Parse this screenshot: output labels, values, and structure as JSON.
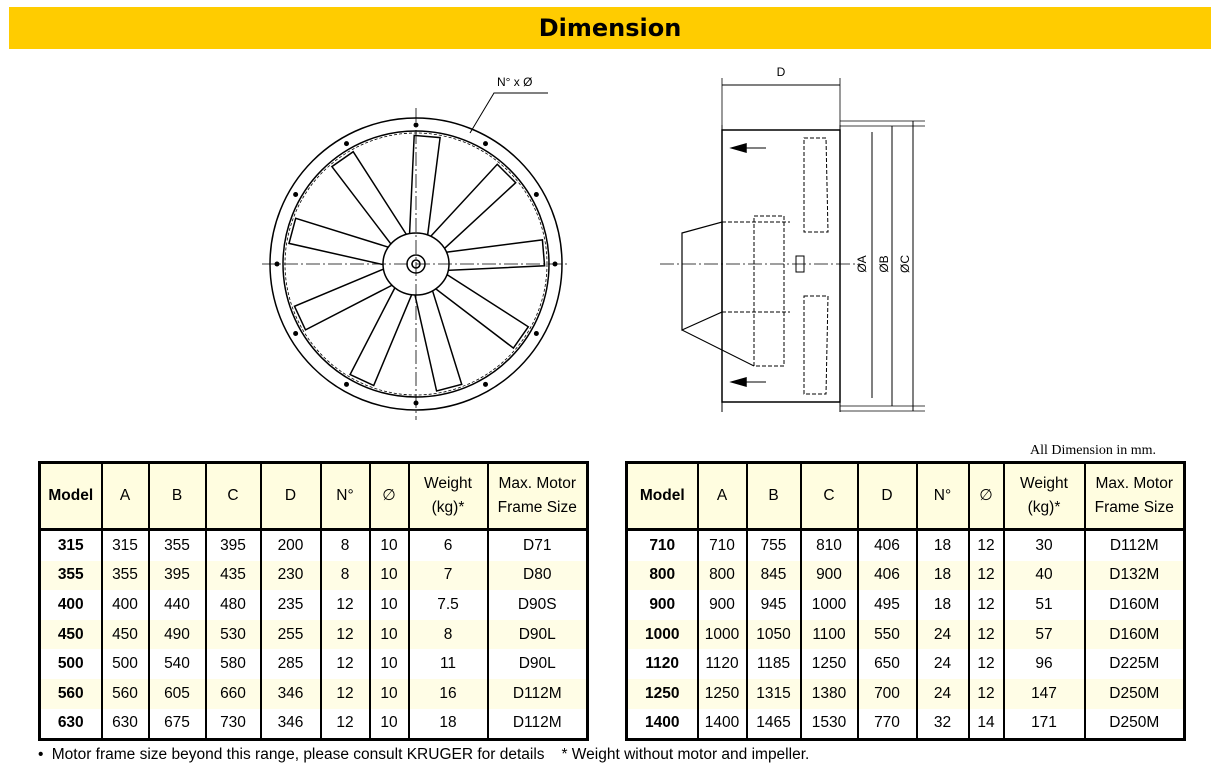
{
  "title": "Dimension",
  "drawing": {
    "front_label": "N° x Ø",
    "side_labels": {
      "d": "D",
      "a": "ØA",
      "b": "ØB",
      "c": "ØC"
    }
  },
  "unit_note": "All Dimension in mm.",
  "table": {
    "headers": [
      "Model",
      "A",
      "B",
      "C",
      "D",
      "N°",
      "∅",
      "Weight (kg)*",
      "Max. Motor Frame Size"
    ],
    "left_rows": [
      [
        "315",
        "315",
        "355",
        "395",
        "200",
        "8",
        "10",
        "6",
        "D71"
      ],
      [
        "355",
        "355",
        "395",
        "435",
        "230",
        "8",
        "10",
        "7",
        "D80"
      ],
      [
        "400",
        "400",
        "440",
        "480",
        "235",
        "12",
        "10",
        "7.5",
        "D90S"
      ],
      [
        "450",
        "450",
        "490",
        "530",
        "255",
        "12",
        "10",
        "8",
        "D90L"
      ],
      [
        "500",
        "500",
        "540",
        "580",
        "285",
        "12",
        "10",
        "11",
        "D90L"
      ],
      [
        "560",
        "560",
        "605",
        "660",
        "346",
        "12",
        "10",
        "16",
        "D112M"
      ],
      [
        "630",
        "630",
        "675",
        "730",
        "346",
        "12",
        "10",
        "18",
        "D112M"
      ]
    ],
    "right_rows": [
      [
        "710",
        "710",
        "755",
        "810",
        "406",
        "18",
        "12",
        "30",
        "D112M"
      ],
      [
        "800",
        "800",
        "845",
        "900",
        "406",
        "18",
        "12",
        "40",
        "D132M"
      ],
      [
        "900",
        "900",
        "945",
        "1000",
        "495",
        "18",
        "12",
        "51",
        "D160M"
      ],
      [
        "1000",
        "1000",
        "1050",
        "1100",
        "550",
        "24",
        "12",
        "57",
        "D160M"
      ],
      [
        "1120",
        "1120",
        "1185",
        "1250",
        "650",
        "24",
        "12",
        "96",
        "D225M"
      ],
      [
        "1250",
        "1250",
        "1315",
        "1380",
        "700",
        "24",
        "12",
        "147",
        "D250M"
      ],
      [
        "1400",
        "1400",
        "1465",
        "1530",
        "770",
        "32",
        "14",
        "171",
        "D250M"
      ]
    ]
  },
  "footnotes": {
    "bullet": "•",
    "note1": "Motor frame size beyond this range, please consult KRUGER for details",
    "note2": "* Weight without motor and impeller."
  },
  "colors": {
    "title_bar": "#ffcc00",
    "header_bg": "#fffde0",
    "alt_row_bg": "#fffde6"
  }
}
